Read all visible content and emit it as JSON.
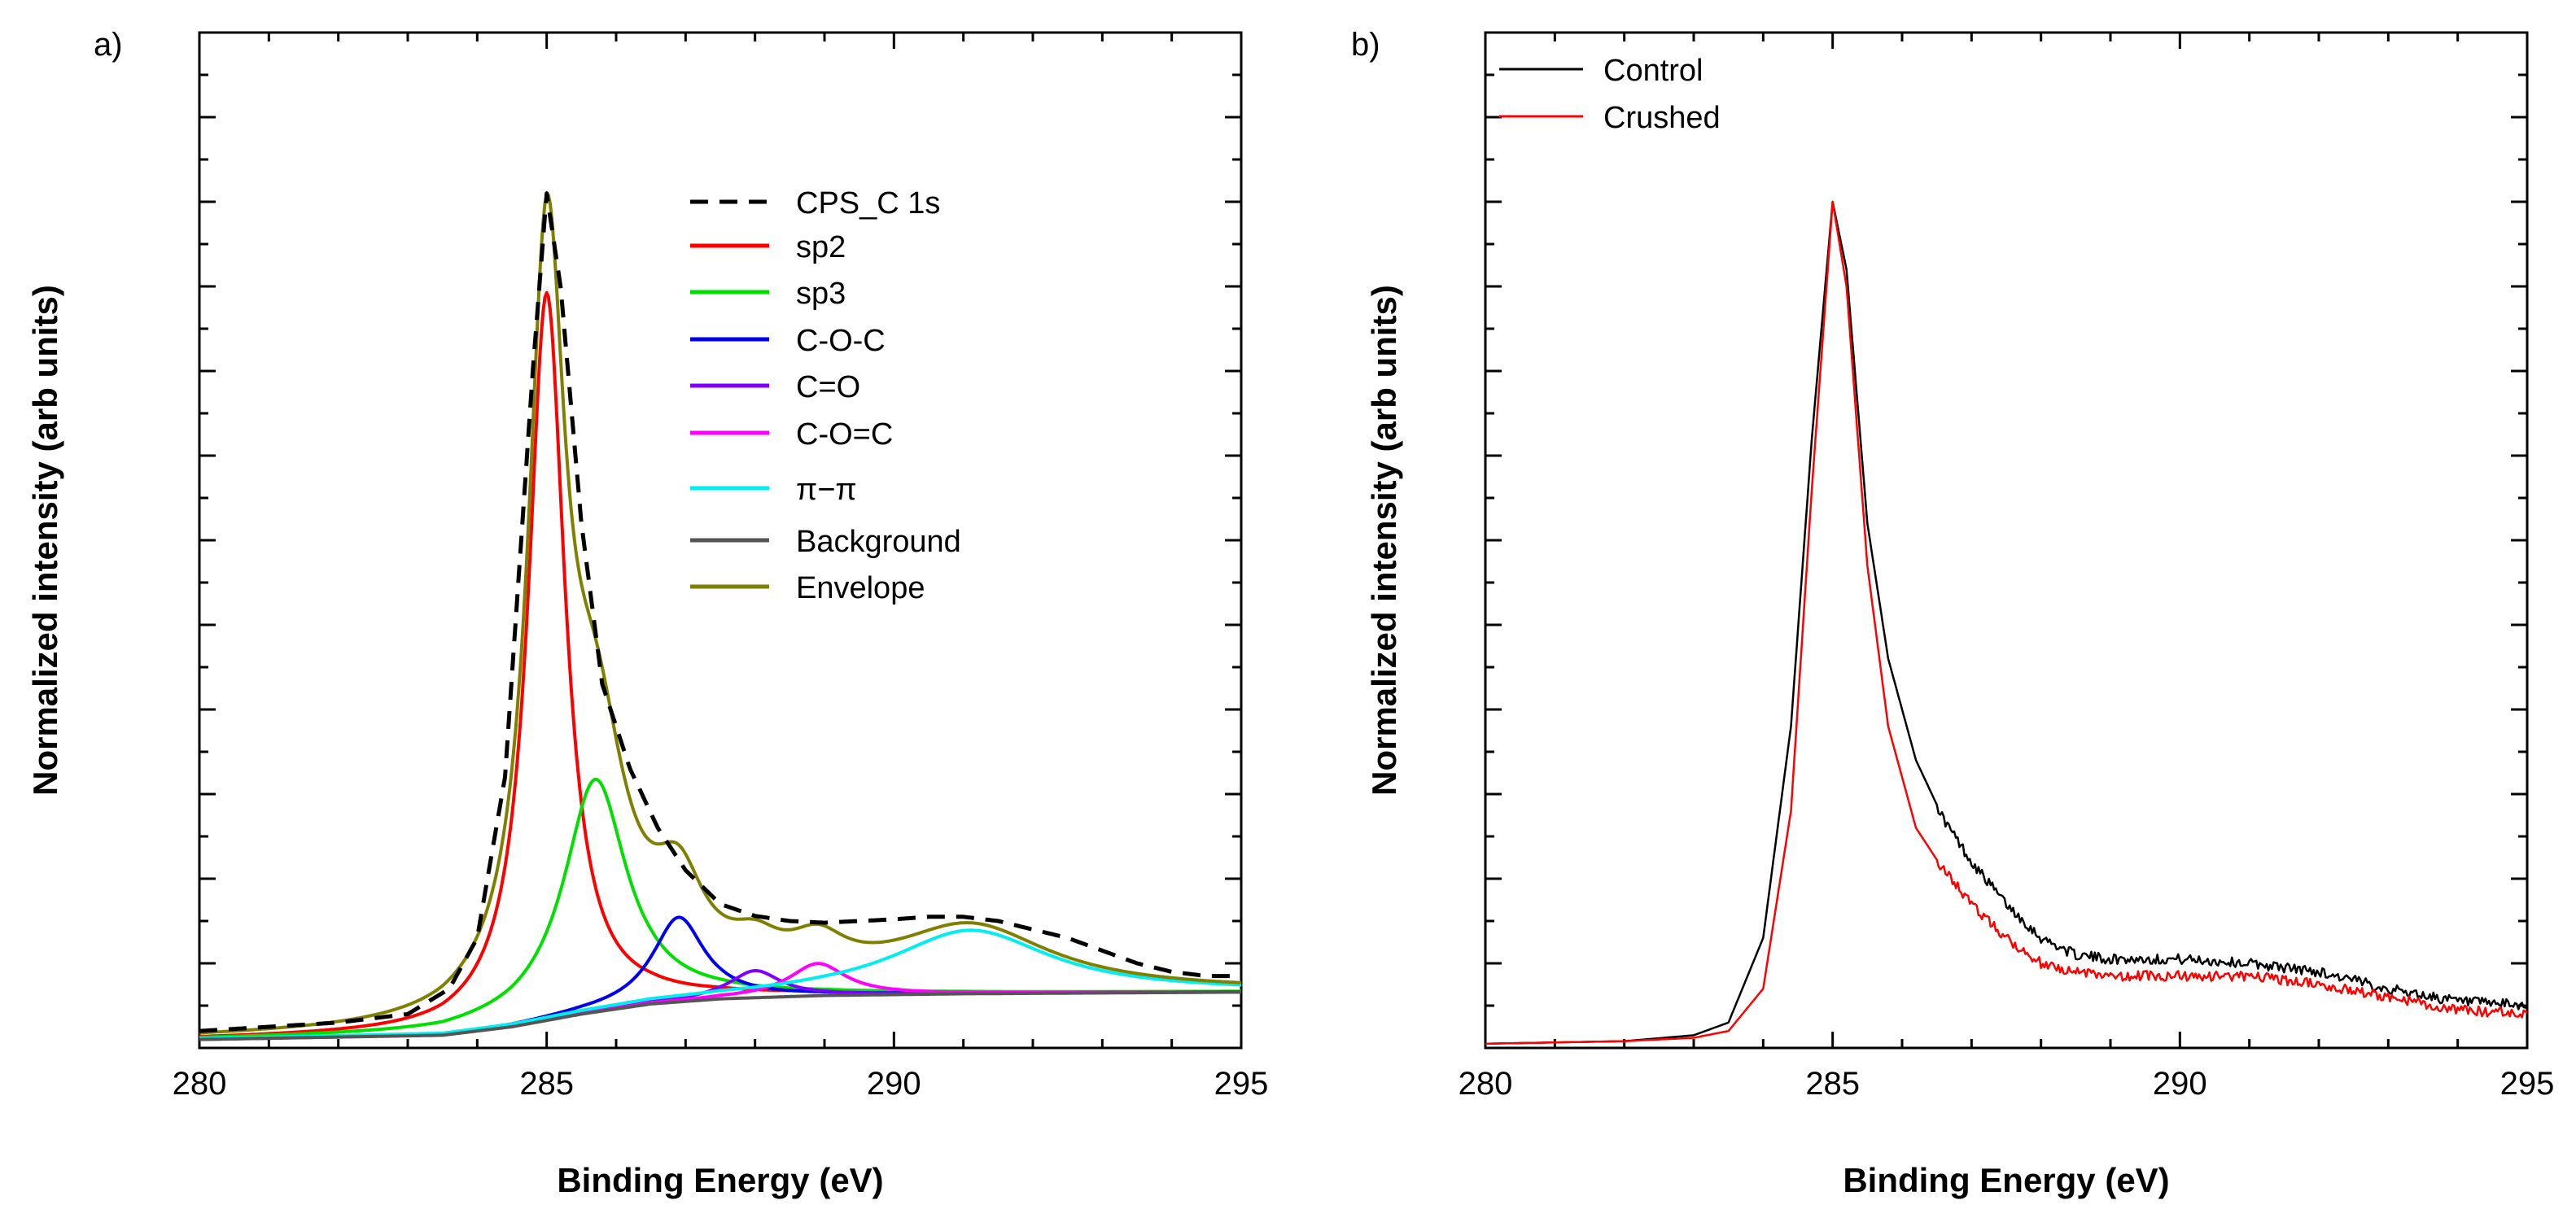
{
  "chart_data": [
    {
      "type": "line",
      "panel_label": "a)",
      "xlabel": "Binding Energy (eV)",
      "ylabel": "Normalized intensity (arb units)",
      "xlim": [
        280,
        295
      ],
      "ylim": [
        0,
        1.2
      ],
      "x_ticks": [
        "280",
        "285",
        "290",
        "295"
      ],
      "y_tick_labels_shown": false,
      "legend_position": "upper-middle",
      "series": [
        {
          "name": "CPS_C 1s",
          "color": "#000000",
          "style": "dashed",
          "x": [
            280,
            282,
            283,
            283.6,
            284,
            284.4,
            284.8,
            285,
            285.2,
            285.5,
            285.8,
            286.2,
            286.6,
            287,
            287.5,
            288,
            288.5,
            289,
            289.5,
            290,
            290.5,
            291,
            291.5,
            292,
            292.5,
            293,
            293.5,
            294,
            294.5,
            295
          ],
          "y": [
            0.02,
            0.03,
            0.04,
            0.07,
            0.13,
            0.32,
            0.8,
            1.01,
            0.9,
            0.62,
            0.43,
            0.33,
            0.26,
            0.21,
            0.17,
            0.156,
            0.15,
            0.148,
            0.15,
            0.152,
            0.155,
            0.155,
            0.15,
            0.14,
            0.13,
            0.115,
            0.1,
            0.09,
            0.085,
            0.085
          ]
        },
        {
          "name": "sp2",
          "color": "#ff0000",
          "style": "solid",
          "center": 285.0,
          "amplitude": 0.86,
          "width": 0.32
        },
        {
          "name": "sp3",
          "color": "#00e000",
          "style": "solid",
          "center": 285.7,
          "amplitude": 0.275,
          "width": 0.55
        },
        {
          "name": "C-O-C",
          "color": "#0000ee",
          "style": "solid",
          "center": 286.9,
          "amplitude": 0.1,
          "width": 0.45
        },
        {
          "name": "C=O",
          "color": "#8000ff",
          "style": "solid",
          "center": 288.0,
          "amplitude": 0.032,
          "width": 0.45
        },
        {
          "name": "C-O=C",
          "color": "#ff00ff",
          "style": "solid",
          "center": 288.9,
          "amplitude": 0.038,
          "width": 0.5
        },
        {
          "name": "π−π",
          "color": "#00eeee",
          "style": "solid",
          "center": 291.1,
          "amplitude": 0.075,
          "width": 1.4
        },
        {
          "name": "Background",
          "color": "#555555",
          "style": "solid",
          "x": [
            280,
            283.5,
            284.5,
            285.5,
            286.5,
            287.5,
            289,
            291,
            293,
            295
          ],
          "y": [
            0.01,
            0.015,
            0.025,
            0.04,
            0.052,
            0.058,
            0.062,
            0.064,
            0.065,
            0.066
          ]
        },
        {
          "name": "Envelope",
          "color": "#808000",
          "style": "solid",
          "x": [],
          "y": []
        }
      ]
    },
    {
      "type": "line",
      "panel_label": "b)",
      "xlabel": "Binding Energy (eV)",
      "ylabel": "Normalized intensity (arb units)",
      "xlim": [
        280,
        295
      ],
      "ylim": [
        0,
        1.2
      ],
      "x_ticks": [
        "280",
        "285",
        "290",
        "295"
      ],
      "y_tick_labels_shown": false,
      "legend_position": "top-left",
      "series": [
        {
          "name": "Control",
          "color": "#000000",
          "x": [
            280,
            282,
            283,
            283.5,
            284,
            284.4,
            284.7,
            285,
            285.2,
            285.5,
            285.8,
            286.2,
            286.6,
            287,
            287.5,
            288,
            288.5,
            289,
            290,
            291,
            292,
            293,
            294,
            295
          ],
          "y": [
            0.005,
            0.008,
            0.015,
            0.03,
            0.13,
            0.38,
            0.72,
            1.0,
            0.92,
            0.62,
            0.46,
            0.34,
            0.27,
            0.22,
            0.17,
            0.13,
            0.11,
            0.105,
            0.105,
            0.1,
            0.09,
            0.07,
            0.055,
            0.05
          ]
        },
        {
          "name": "Crushed",
          "color": "#ff0000",
          "x": [
            280,
            282,
            283,
            283.5,
            284,
            284.4,
            284.7,
            285,
            285.2,
            285.5,
            285.8,
            286.2,
            286.6,
            287,
            287.5,
            288,
            288.5,
            289,
            290,
            291,
            292,
            293,
            294,
            295
          ],
          "y": [
            0.005,
            0.008,
            0.012,
            0.02,
            0.07,
            0.28,
            0.66,
            1.0,
            0.9,
            0.57,
            0.38,
            0.26,
            0.21,
            0.17,
            0.13,
            0.1,
            0.09,
            0.085,
            0.085,
            0.085,
            0.075,
            0.06,
            0.045,
            0.04
          ]
        }
      ]
    }
  ]
}
